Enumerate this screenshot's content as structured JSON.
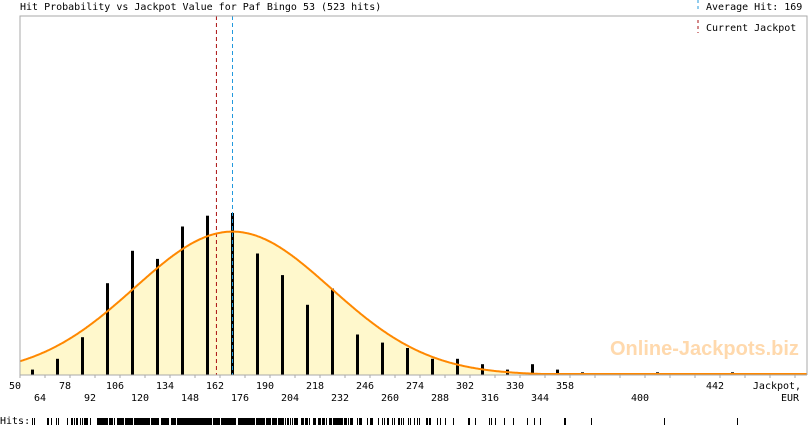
{
  "chart_data": {
    "type": "bar",
    "title": "Hit Probability vs Jackpot Value for Paf Bingo 53 (523 hits)",
    "xlabel": "Jackpot,",
    "xunit": "EUR",
    "xlim": [
      50,
      491
    ],
    "bin_width": 14,
    "bins": [
      57,
      71,
      85,
      99,
      113,
      127,
      141,
      155,
      169,
      183,
      197,
      211,
      225,
      239,
      253,
      267,
      281,
      295,
      309,
      323,
      337,
      351,
      365,
      407,
      449
    ],
    "hits": [
      2,
      6,
      14,
      34,
      46,
      43,
      55,
      59,
      60,
      45,
      37,
      26,
      32,
      15,
      12,
      10,
      6,
      6,
      4,
      2,
      4,
      2,
      1,
      1,
      1
    ],
    "total_hits": 523,
    "fit_curve": {
      "type": "normal",
      "mean": 169,
      "sd": 55
    },
    "average_hit": 169,
    "current_jackpot": 160,
    "ticks_top": [
      "50",
      "78",
      "106",
      "134",
      "162",
      "190",
      "218",
      "246",
      "274",
      "302",
      "330",
      "358",
      "442"
    ],
    "ticks_bottom": [
      "64",
      "92",
      "120",
      "148",
      "176",
      "204",
      "232",
      "260",
      "288",
      "316",
      "344",
      "400"
    ],
    "legend": {
      "average_label": "Average Hit: 169",
      "current_label": "Current Jackpot",
      "placement": "top-right"
    },
    "hits_strip_label": "Hits:",
    "watermark": "Online-Jackpots.biz",
    "colors": {
      "bar": "#000000",
      "curve": "#ff8800",
      "fill": "#fff8cc",
      "average": "#2299dd",
      "current": "#aa1111",
      "axis": "#aaaaaa"
    }
  }
}
